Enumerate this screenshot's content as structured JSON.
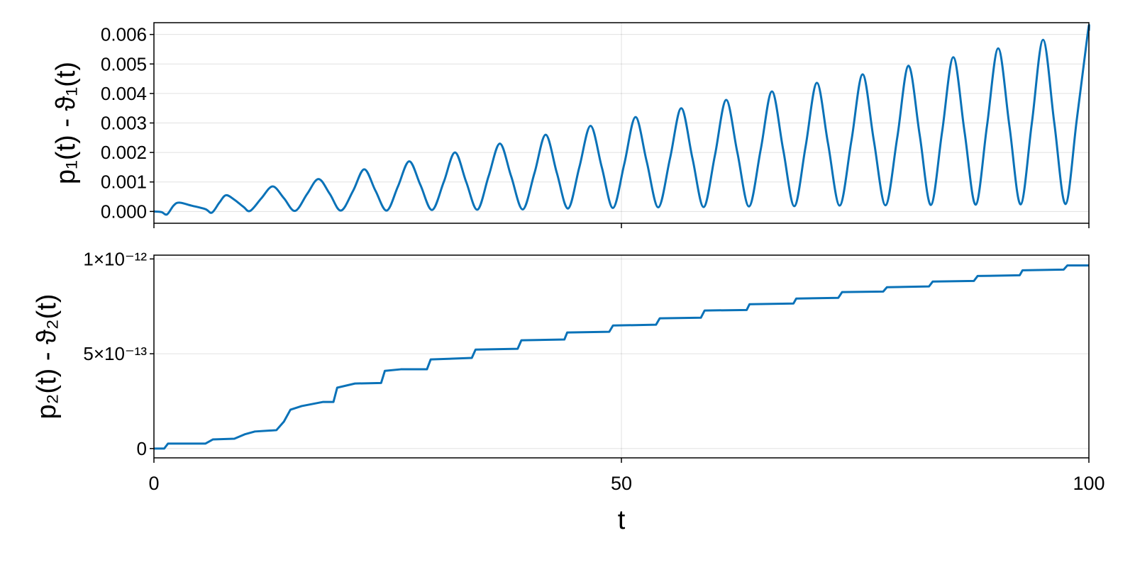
{
  "chart_data": [
    {
      "type": "line",
      "ylabel": "p₁(t) - ϑ₁(t)",
      "x": [
        0,
        0.8,
        1.4,
        2.1,
        2.7,
        4,
        5.5,
        6.2,
        7,
        7.7,
        8.6,
        9.6,
        10.3,
        11.5,
        12.7,
        13.9,
        15.1,
        16.4,
        17.6,
        18.8,
        20,
        21.3,
        22.5,
        23.7,
        24.9,
        26.1,
        27.3,
        28.5,
        29.75,
        31,
        32.2,
        33.4,
        34.6,
        35.8,
        37,
        38.2,
        39.45,
        40.7,
        41.9,
        43.1,
        44.3,
        45.5,
        46.7,
        47.9,
        49.1,
        50.3,
        51.5,
        52.7,
        53.95,
        55.2,
        56.4,
        57.6,
        58.8,
        60,
        61.2,
        62.4,
        63.65,
        64.9,
        66.1,
        67.3,
        68.5,
        69.7,
        70.9,
        72.1,
        73.35,
        74.6,
        75.8,
        77,
        78.25,
        79.5,
        80.7,
        81.9,
        83.1,
        84.3,
        85.5,
        86.7,
        87.9,
        89.1,
        90.3,
        91.5,
        92.7,
        93.9,
        95.1,
        96.3,
        97.5,
        98.7,
        99.9,
        100
      ],
      "series": [
        {
          "color": "#0a72b8",
          "values": [
            0,
            -2e-05,
            -0.0001,
            0.0002,
            0.0003,
            0.0002,
            8e-05,
            -4e-05,
            0.0003,
            0.00055,
            0.0004,
            0.00015,
            2e-05,
            0.00045,
            0.00085,
            0.00045,
            2e-05,
            0.0006,
            0.0011,
            0.0006,
            3e-05,
            0.0007,
            0.00143,
            0.0007,
            3e-05,
            0.00085,
            0.0017,
            0.0009,
            5e-05,
            0.001,
            0.002,
            0.001,
            6e-05,
            0.0012,
            0.0023,
            0.0012,
            7e-05,
            0.0013,
            0.0026,
            0.0013,
            0.0001,
            0.0015,
            0.0029,
            0.0015,
            0.00012,
            0.0016,
            0.0032,
            0.0017,
            0.00014,
            0.0018,
            0.0035,
            0.0018,
            0.00015,
            0.0019,
            0.00378,
            0.002,
            0.00017,
            0.0021,
            0.00407,
            0.0021,
            0.00018,
            0.0022,
            0.00436,
            0.0023,
            0.0002,
            0.0024,
            0.00465,
            0.0024,
            0.00021,
            0.0025,
            0.00494,
            0.0026,
            0.00022,
            0.0027,
            0.00523,
            0.0027,
            0.00023,
            0.0029,
            0.00553,
            0.0029,
            0.00024,
            0.003,
            0.00582,
            0.003,
            0.00025,
            0.0031,
            0.0061,
            0.0061
          ]
        }
      ],
      "xlim": [
        0,
        100
      ],
      "xticks": [
        0,
        50,
        100
      ],
      "ylim": [
        -0.0004,
        0.0064
      ],
      "yticks": [
        {
          "value": 0,
          "label": "0.000"
        },
        0.001,
        0.002,
        0.003,
        0.004,
        0.005,
        0.006
      ],
      "grid": true
    },
    {
      "type": "line",
      "ylabel": "p₂(t) - ϑ₂(t)",
      "xlabel": "t",
      "x": [
        0,
        1.1,
        1.5,
        5.5,
        6.3,
        8.6,
        9.7,
        10.8,
        13.1,
        13.9,
        14.6,
        15.8,
        18.1,
        19.2,
        19.6,
        21.5,
        24.3,
        24.7,
        26.4,
        29.2,
        29.6,
        34,
        34.4,
        38.9,
        39.3,
        43.9,
        44.2,
        48.7,
        49.1,
        53.7,
        54.1,
        58.5,
        58.9,
        63.4,
        63.7,
        68.4,
        68.7,
        73.2,
        73.6,
        78,
        78.4,
        82.9,
        83.3,
        87.7,
        88.1,
        92.6,
        92.9,
        97.3,
        97.7,
        100
      ],
      "series": [
        {
          "color": "#0a72b8",
          "values": [
            0,
            0,
            2.6e-14,
            2.6e-14,
            4.8e-14,
            5.2e-14,
            7.5e-14,
            9e-14,
            9.7e-14,
            1.42e-13,
            2.05e-13,
            2.24e-13,
            2.46e-13,
            2.46e-13,
            3.21e-13,
            3.43e-13,
            3.46e-13,
            4.1e-13,
            4.18e-13,
            4.18e-13,
            4.7e-13,
            4.78e-13,
            5.22e-13,
            5.26e-13,
            5.71e-13,
            5.75e-13,
            6.12e-13,
            6.16e-13,
            6.49e-13,
            6.53e-13,
            6.87e-13,
            6.9e-13,
            7.28e-13,
            7.31e-13,
            7.61e-13,
            7.65e-13,
            7.91e-13,
            7.95e-13,
            8.25e-13,
            8.28e-13,
            8.51e-13,
            8.55e-13,
            8.81e-13,
            8.84e-13,
            9.1e-13,
            9.14e-13,
            9.4e-13,
            9.44e-13,
            9.66e-13,
            9.66e-13
          ]
        }
      ],
      "xlim": [
        0,
        100
      ],
      "xticks": [
        0,
        50,
        100
      ],
      "ylim": [
        -4.9e-14,
        1.02e-12
      ],
      "yticks": [
        0,
        {
          "value": 5e-13,
          "label": "5×10⁻¹³"
        },
        {
          "value": 1e-12,
          "label": "1×10⁻¹²"
        }
      ],
      "grid": true
    }
  ]
}
